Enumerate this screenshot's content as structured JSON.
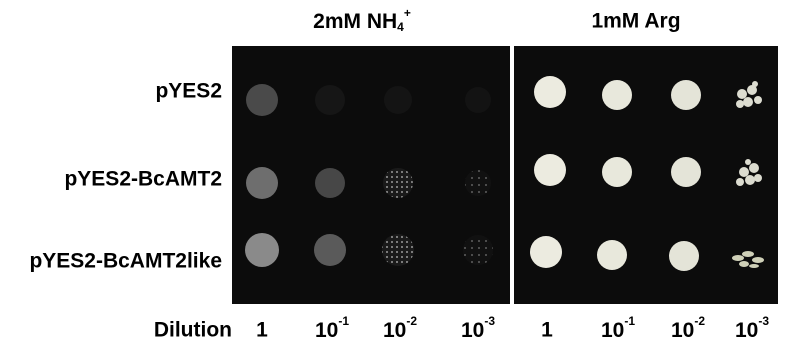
{
  "panels": [
    {
      "header": {
        "text": "2mM NH",
        "sub": "4",
        "sup": "+"
      },
      "dilutions": [
        {
          "base": "1"
        },
        {
          "base": "10",
          "exp": "-1"
        },
        {
          "base": "10",
          "exp": "-2"
        },
        {
          "base": "10",
          "exp": "-3"
        }
      ]
    },
    {
      "header": {
        "text": "1mM Arg"
      },
      "dilutions": [
        {
          "base": "1"
        },
        {
          "base": "10",
          "exp": "-1"
        },
        {
          "base": "10",
          "exp": "-2"
        },
        {
          "base": "10",
          "exp": "-3"
        }
      ]
    }
  ],
  "rows": [
    "pYES2",
    "pYES2-BcAMT2",
    "pYES2-BcAMT2like"
  ],
  "dilution_label": "Dilution"
}
